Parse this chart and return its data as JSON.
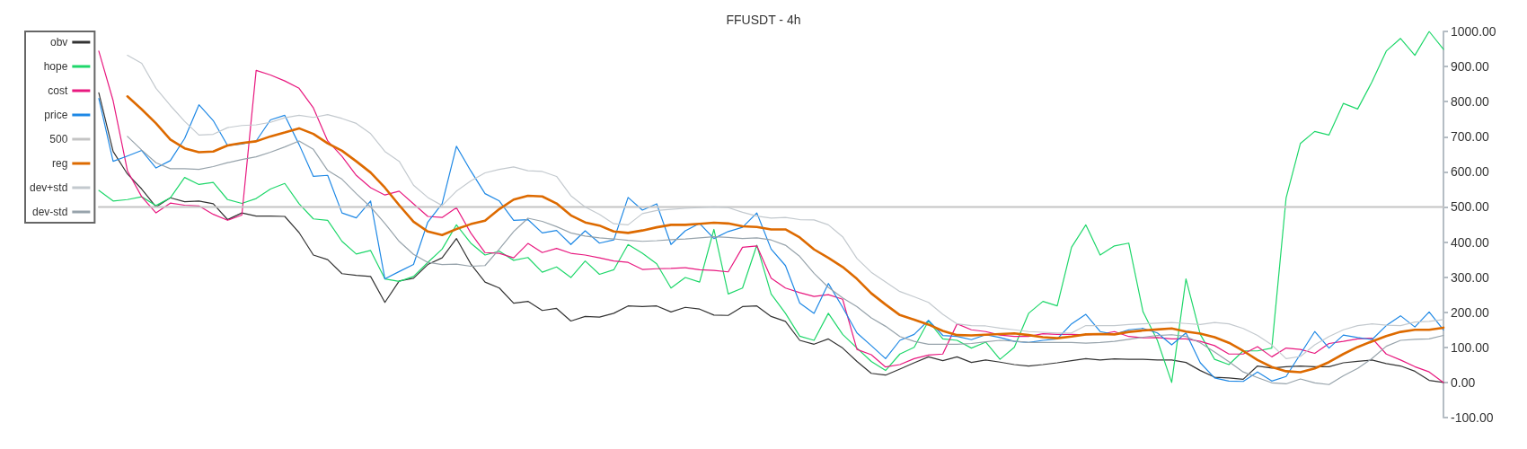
{
  "chart_data": {
    "type": "line",
    "title": "FFUSDT - 4h",
    "categories": [
      null,
      null,
      null,
      null,
      null,
      null,
      null,
      null,
      null,
      null,
      null,
      null,
      null,
      null,
      null,
      null,
      null,
      null,
      null,
      null,
      null,
      null,
      null,
      null,
      null,
      null,
      null,
      null,
      null,
      null,
      null,
      null,
      null,
      null,
      null,
      null,
      null,
      null,
      null,
      null,
      null,
      null,
      null,
      null,
      null,
      null,
      null,
      null,
      null,
      null,
      null,
      null,
      null,
      null,
      null,
      null,
      null,
      null,
      null,
      null,
      null,
      null,
      null,
      null,
      null,
      null,
      null,
      null,
      null,
      null,
      null,
      null,
      null,
      null,
      null,
      null,
      null,
      null,
      null,
      null,
      null,
      null,
      null,
      null,
      null,
      null,
      null,
      null,
      null,
      null,
      null,
      null,
      null,
      null,
      null
    ],
    "series": [
      {
        "name": "obv",
        "color": "#333333",
        "values": [
          825,
          658,
          594,
          551,
          500,
          526,
          515,
          517,
          509,
          464,
          483,
          474,
          474,
          473,
          427,
          363,
          350,
          310,
          305,
          302,
          228,
          289,
          297,
          336,
          355,
          410,
          338,
          286,
          269,
          226,
          231,
          205,
          211,
          175,
          188,
          186,
          197,
          218,
          216,
          218,
          201,
          214,
          209,
          192,
          191,
          216,
          218,
          188,
          174,
          120,
          109,
          124,
          98,
          60,
          26,
          21,
          38,
          56,
          73,
          62,
          73,
          57,
          64,
          58,
          51,
          47,
          51,
          56,
          62,
          68,
          64,
          67,
          66,
          66,
          64,
          64,
          57,
          34,
          15,
          13,
          9,
          47,
          41,
          45,
          47,
          45,
          45,
          56,
          60,
          64,
          54,
          47,
          32,
          6,
          0
        ]
      },
      {
        "name": "hope",
        "color": "#1ed76a",
        "values": [
          547,
          517,
          521,
          529,
          504,
          526,
          584,
          564,
          570,
          521,
          510,
          524,
          551,
          567,
          509,
          466,
          462,
          402,
          366,
          376,
          295,
          288,
          302,
          342,
          380,
          449,
          397,
          363,
          374,
          348,
          356,
          314,
          329,
          299,
          346,
          308,
          321,
          393,
          368,
          338,
          269,
          299,
          286,
          436,
          252,
          269,
          391,
          252,
          197,
          132,
          120,
          197,
          137,
          98,
          60,
          34,
          81,
          100,
          175,
          124,
          120,
          98,
          115,
          66,
          100,
          197,
          231,
          218,
          385,
          449,
          363,
          389,
          397,
          201,
          120,
          0,
          295,
          137,
          66,
          51,
          90,
          90,
          98,
          526,
          681,
          715,
          705,
          795,
          779,
          856,
          944,
          980,
          932,
          1000,
          949
        ]
      },
      {
        "name": "cost",
        "color": "#e8187f",
        "values": [
          944,
          803,
          603,
          529,
          483,
          511,
          505,
          503,
          479,
          462,
          477,
          889,
          876,
          859,
          838,
          782,
          688,
          644,
          590,
          555,
          534,
          545,
          509,
          473,
          470,
          498,
          426,
          370,
          368,
          355,
          396,
          370,
          382,
          368,
          363,
          355,
          346,
          342,
          322,
          324,
          325,
          327,
          321,
          319,
          315,
          385,
          389,
          297,
          269,
          256,
          245,
          250,
          237,
          94,
          79,
          44,
          51,
          68,
          78,
          81,
          167,
          150,
          145,
          135,
          131,
          131,
          139,
          137,
          137,
          136,
          137,
          145,
          131,
          127,
          128,
          124,
          124,
          117,
          105,
          81,
          81,
          102,
          73,
          98,
          94,
          83,
          111,
          117,
          124,
          126,
          81,
          64,
          45,
          30,
          0
        ]
      },
      {
        "name": "price",
        "color": "#1e88e5",
        "values": [
          809,
          630,
          645,
          661,
          611,
          632,
          695,
          791,
          746,
          675,
          679,
          688,
          748,
          761,
          678,
          587,
          590,
          483,
          469,
          517,
          295,
          316,
          336,
          457,
          509,
          673,
          603,
          538,
          517,
          462,
          464,
          426,
          433,
          393,
          432,
          397,
          406,
          527,
          491,
          509,
          393,
          432,
          453,
          410,
          430,
          442,
          483,
          380,
          333,
          226,
          197,
          282,
          214,
          141,
          105,
          68,
          120,
          137,
          177,
          134,
          131,
          122,
          136,
          128,
          117,
          114,
          120,
          124,
          167,
          194,
          145,
          137,
          150,
          154,
          141,
          107,
          141,
          56,
          13,
          4,
          3,
          30,
          4,
          17,
          81,
          145,
          98,
          135,
          128,
          122,
          162,
          190,
          158,
          201,
          150
        ]
      },
      {
        "name": "500",
        "color": "#c4c4c4",
        "values": [
          500,
          500,
          500,
          500,
          500,
          500,
          500,
          500,
          500,
          500,
          500,
          500,
          500,
          500,
          500,
          500,
          500,
          500,
          500,
          500,
          500,
          500,
          500,
          500,
          500,
          500,
          500,
          500,
          500,
          500,
          500,
          500,
          500,
          500,
          500,
          500,
          500,
          500,
          500,
          500,
          500,
          500,
          500,
          500,
          500,
          500,
          500,
          500,
          500,
          500,
          500,
          500,
          500,
          500,
          500,
          500,
          500,
          500,
          500,
          500,
          500,
          500,
          500,
          500,
          500,
          500,
          500,
          500,
          500,
          500,
          500,
          500,
          500,
          500,
          500,
          500,
          500,
          500,
          500,
          500,
          500,
          500,
          500,
          500,
          500,
          500,
          500,
          500,
          500,
          500,
          500,
          500,
          500,
          500,
          500
        ]
      },
      {
        "name": "reg",
        "color": "#dd6a00",
        "values": [
          null,
          null,
          815,
          778,
          738,
          692,
          667,
          656,
          658,
          675,
          682,
          687,
          701,
          712,
          724,
          708,
          681,
          660,
          630,
          598,
          555,
          505,
          458,
          430,
          420,
          437,
          451,
          461,
          494,
          521,
          532,
          530,
          510,
          476,
          456,
          447,
          430,
          426,
          433,
          442,
          449,
          449,
          452,
          455,
          453,
          445,
          443,
          436,
          436,
          413,
          379,
          355,
          329,
          295,
          254,
          222,
          192,
          179,
          165,
          147,
          135,
          134,
          136,
          138,
          140,
          135,
          129,
          126,
          131,
          137,
          138,
          137,
          144,
          148,
          151,
          154,
          145,
          139,
          129,
          113,
          90,
          64,
          44,
          32,
          29,
          40,
          58,
          81,
          101,
          117,
          132,
          144,
          150,
          150,
          156
        ]
      },
      {
        "name": "dev+std",
        "color": "#c3c9ce",
        "values": [
          null,
          null,
          932,
          909,
          838,
          789,
          744,
          705,
          707,
          726,
          732,
          734,
          741,
          754,
          761,
          755,
          763,
          752,
          738,
          709,
          658,
          630,
          562,
          527,
          504,
          545,
          574,
          597,
          607,
          614,
          603,
          601,
          587,
          532,
          500,
          479,
          452,
          449,
          481,
          490,
          493,
          496,
          498,
          500,
          498,
          485,
          474,
          468,
          470,
          464,
          463,
          449,
          415,
          353,
          314,
          286,
          259,
          244,
          228,
          194,
          167,
          162,
          161,
          155,
          150,
          145,
          143,
          141,
          141,
          162,
          162,
          162,
          165,
          167,
          169,
          171,
          168,
          165,
          171,
          167,
          154,
          134,
          107,
          68,
          74,
          107,
          131,
          150,
          162,
          167,
          163,
          162,
          172,
          174,
          179
        ]
      },
      {
        "name": "dev-std",
        "color": "#97a3ab",
        "values": [
          null,
          null,
          701,
          662,
          626,
          609,
          609,
          607,
          615,
          626,
          635,
          643,
          656,
          671,
          688,
          664,
          604,
          579,
          538,
          500,
          453,
          402,
          365,
          342,
          336,
          337,
          331,
          333,
          380,
          430,
          468,
          459,
          444,
          426,
          417,
          412,
          409,
          405,
          402,
          404,
          407,
          409,
          412,
          415,
          413,
          410,
          412,
          406,
          391,
          359,
          311,
          271,
          241,
          216,
          184,
          160,
          131,
          117,
          109,
          109,
          109,
          111,
          116,
          120,
          118,
          114,
          114,
          114,
          114,
          112,
          114,
          117,
          123,
          129,
          134,
          136,
          131,
          113,
          87,
          59,
          30,
          14,
          -1,
          -4,
          10,
          -1,
          -6,
          19,
          40,
          68,
          103,
          120,
          123,
          124,
          134
        ]
      }
    ],
    "ylim": [
      -100,
      1000
    ],
    "yticks": [
      {
        "value": -100,
        "label": "-100.00"
      },
      {
        "value": 0,
        "label": "0.00"
      },
      {
        "value": 100,
        "label": "100.00"
      },
      {
        "value": 200,
        "label": "200.00"
      },
      {
        "value": 300,
        "label": "300.00"
      },
      {
        "value": 400,
        "label": "400.00"
      },
      {
        "value": 500,
        "label": "500.00"
      },
      {
        "value": 600,
        "label": "600.00"
      },
      {
        "value": 700,
        "label": "700.00"
      },
      {
        "value": 800,
        "label": "800.00"
      },
      {
        "value": 900,
        "label": "900.00"
      },
      {
        "value": 1000,
        "label": "1000.00"
      }
    ],
    "legend": "top left",
    "tick_labels": "y"
  }
}
